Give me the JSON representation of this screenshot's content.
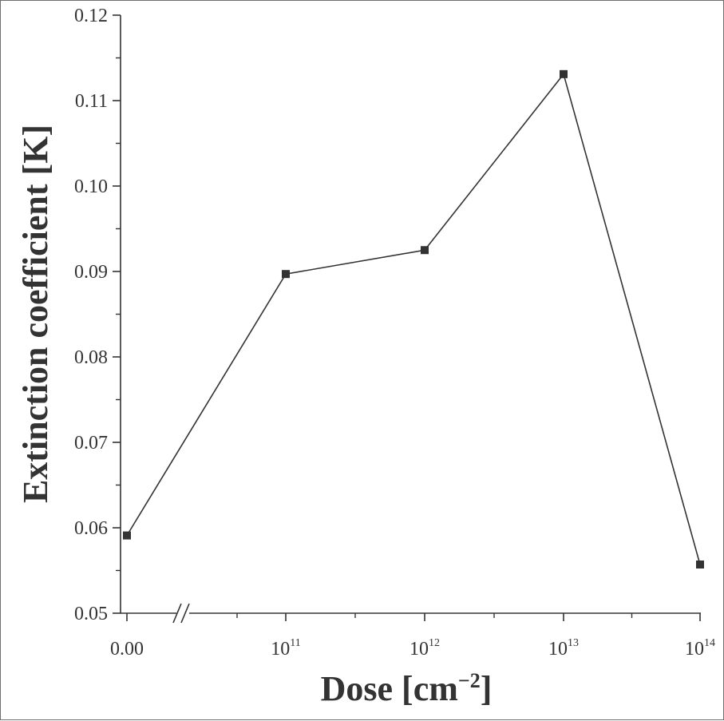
{
  "chart_data": {
    "type": "line",
    "x_axis": {
      "label": "Dose [cm",
      "label_exponent": "−2",
      "label_suffix": "]",
      "tick_labels": [
        {
          "base": "0.00",
          "exp": ""
        },
        {
          "base": "10",
          "exp": "11"
        },
        {
          "base": "10",
          "exp": "12"
        },
        {
          "base": "10",
          "exp": "13"
        },
        {
          "base": "10",
          "exp": "14"
        }
      ],
      "scale": "log with axis break after 0.00"
    },
    "y_axis": {
      "label": "Extinction coefficient [K]",
      "ylim": [
        0.05,
        0.12
      ],
      "tick_labels": [
        "0.05",
        "0.06",
        "0.07",
        "0.08",
        "0.09",
        "0.10",
        "0.11",
        "0.12"
      ]
    },
    "series": [
      {
        "marker": "square",
        "x": [
          "0.00",
          "10^11",
          "10^12",
          "10^13",
          "10^14"
        ],
        "y": [
          0.0591,
          0.0897,
          0.0925,
          0.1131,
          0.0557
        ]
      }
    ],
    "grid": false,
    "legend": "none",
    "colors": {
      "line": "#333333",
      "marker": "#333333",
      "axis": "#333333"
    }
  }
}
